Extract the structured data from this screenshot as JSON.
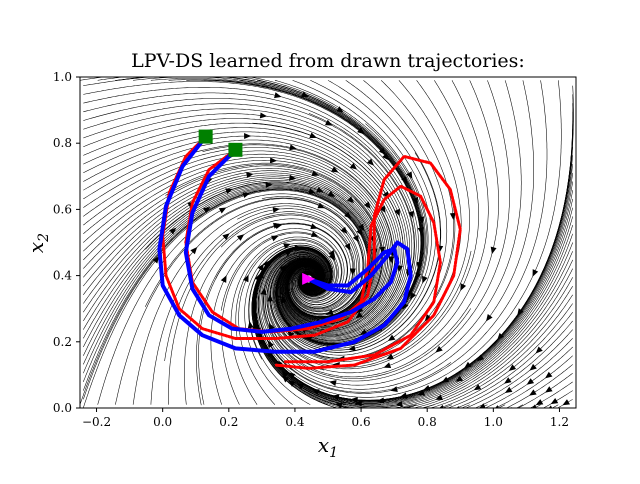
{
  "chart_data": {
    "type": "streamplot",
    "title": "LPV-DS learned from drawn trajectories:",
    "xlabel": "x",
    "xlabel_sub": "1",
    "ylabel": "x",
    "ylabel_sub": "2",
    "xlim": [
      -0.25,
      1.25
    ],
    "ylim": [
      0.0,
      1.0
    ],
    "xticks": [
      -0.2,
      0.0,
      0.2,
      0.4,
      0.6,
      0.8,
      1.0,
      1.2
    ],
    "xtick_labels": [
      "−0.2",
      "0.0",
      "0.2",
      "0.4",
      "0.6",
      "0.8",
      "1.0",
      "1.2"
    ],
    "yticks": [
      0.0,
      0.2,
      0.4,
      0.6,
      0.8,
      1.0
    ],
    "ytick_labels": [
      "0.0",
      "0.2",
      "0.4",
      "0.6",
      "0.8",
      "1.0"
    ],
    "grid": false,
    "attractor": {
      "x": 0.44,
      "y": 0.39,
      "color": "#ff00ff"
    },
    "start_points": [
      {
        "x": 0.13,
        "y": 0.82,
        "color": "#008000"
      },
      {
        "x": 0.22,
        "y": 0.78,
        "color": "#008000"
      }
    ],
    "demonstrations": [
      {
        "color": "#ff0000",
        "points": [
          [
            0.13,
            0.82
          ],
          [
            0.07,
            0.76
          ],
          [
            0.02,
            0.65
          ],
          [
            0.0,
            0.52
          ],
          [
            0.01,
            0.4
          ],
          [
            0.05,
            0.3
          ],
          [
            0.12,
            0.24
          ],
          [
            0.22,
            0.21
          ],
          [
            0.34,
            0.21
          ],
          [
            0.46,
            0.22
          ],
          [
            0.56,
            0.26
          ],
          [
            0.62,
            0.34
          ],
          [
            0.64,
            0.45
          ],
          [
            0.64,
            0.58
          ],
          [
            0.67,
            0.69
          ],
          [
            0.73,
            0.76
          ],
          [
            0.81,
            0.74
          ],
          [
            0.87,
            0.66
          ],
          [
            0.9,
            0.54
          ],
          [
            0.88,
            0.4
          ],
          [
            0.82,
            0.28
          ],
          [
            0.72,
            0.18
          ],
          [
            0.58,
            0.13
          ],
          [
            0.44,
            0.12
          ],
          [
            0.34,
            0.13
          ]
        ]
      },
      {
        "color": "#ff0000",
        "points": [
          [
            0.22,
            0.78
          ],
          [
            0.14,
            0.72
          ],
          [
            0.09,
            0.62
          ],
          [
            0.07,
            0.5
          ],
          [
            0.09,
            0.38
          ],
          [
            0.15,
            0.29
          ],
          [
            0.23,
            0.24
          ],
          [
            0.33,
            0.23
          ],
          [
            0.44,
            0.24
          ],
          [
            0.54,
            0.27
          ],
          [
            0.6,
            0.32
          ],
          [
            0.62,
            0.42
          ],
          [
            0.63,
            0.55
          ],
          [
            0.67,
            0.63
          ],
          [
            0.72,
            0.67
          ],
          [
            0.78,
            0.64
          ],
          [
            0.82,
            0.56
          ],
          [
            0.84,
            0.44
          ],
          [
            0.82,
            0.32
          ],
          [
            0.75,
            0.22
          ],
          [
            0.64,
            0.16
          ],
          [
            0.5,
            0.14
          ],
          [
            0.37,
            0.14
          ]
        ]
      }
    ],
    "reproductions": [
      {
        "color": "#0000ff",
        "points": [
          [
            0.13,
            0.82
          ],
          [
            0.06,
            0.73
          ],
          [
            0.01,
            0.61
          ],
          [
            -0.01,
            0.48
          ],
          [
            0.0,
            0.37
          ],
          [
            0.05,
            0.28
          ],
          [
            0.12,
            0.22
          ],
          [
            0.22,
            0.18
          ],
          [
            0.34,
            0.17
          ],
          [
            0.46,
            0.17
          ],
          [
            0.58,
            0.2
          ],
          [
            0.67,
            0.25
          ],
          [
            0.73,
            0.32
          ],
          [
            0.75,
            0.4
          ],
          [
            0.74,
            0.48
          ],
          [
            0.71,
            0.5
          ],
          [
            0.68,
            0.46
          ],
          [
            0.63,
            0.4
          ],
          [
            0.57,
            0.35
          ],
          [
            0.5,
            0.36
          ],
          [
            0.44,
            0.39
          ]
        ]
      },
      {
        "color": "#0000ff",
        "points": [
          [
            0.22,
            0.78
          ],
          [
            0.14,
            0.7
          ],
          [
            0.09,
            0.59
          ],
          [
            0.07,
            0.47
          ],
          [
            0.09,
            0.36
          ],
          [
            0.14,
            0.28
          ],
          [
            0.21,
            0.24
          ],
          [
            0.3,
            0.23
          ],
          [
            0.39,
            0.24
          ],
          [
            0.48,
            0.26
          ],
          [
            0.57,
            0.29
          ],
          [
            0.64,
            0.33
          ],
          [
            0.69,
            0.38
          ],
          [
            0.71,
            0.44
          ],
          [
            0.7,
            0.48
          ],
          [
            0.67,
            0.47
          ],
          [
            0.62,
            0.42
          ],
          [
            0.56,
            0.37
          ],
          [
            0.5,
            0.37
          ],
          [
            0.44,
            0.39
          ]
        ]
      }
    ]
  }
}
